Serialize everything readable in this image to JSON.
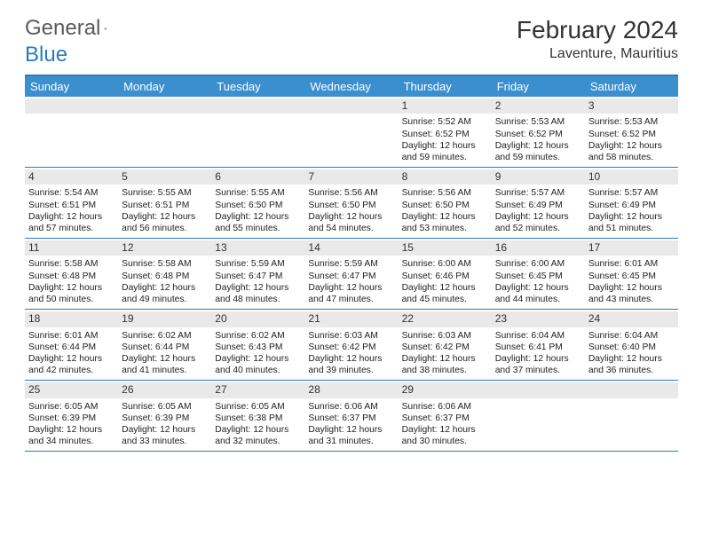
{
  "brand": {
    "name1": "General",
    "name2": "Blue"
  },
  "title": "February 2024",
  "location": "Laventure, Mauritius",
  "colors": {
    "header_bar": "#3b8fcf",
    "rule": "#2b7bbf",
    "daynum_bg": "#e9e9e9",
    "text": "#333333",
    "bg": "#ffffff"
  },
  "daysOfWeek": [
    "Sunday",
    "Monday",
    "Tuesday",
    "Wednesday",
    "Thursday",
    "Friday",
    "Saturday"
  ],
  "layout": {
    "first_weekday_index": 4,
    "num_days": 29
  },
  "days": {
    "1": {
      "sunrise": "5:52 AM",
      "sunset": "6:52 PM",
      "daylight": "12 hours and 59 minutes."
    },
    "2": {
      "sunrise": "5:53 AM",
      "sunset": "6:52 PM",
      "daylight": "12 hours and 59 minutes."
    },
    "3": {
      "sunrise": "5:53 AM",
      "sunset": "6:52 PM",
      "daylight": "12 hours and 58 minutes."
    },
    "4": {
      "sunrise": "5:54 AM",
      "sunset": "6:51 PM",
      "daylight": "12 hours and 57 minutes."
    },
    "5": {
      "sunrise": "5:55 AM",
      "sunset": "6:51 PM",
      "daylight": "12 hours and 56 minutes."
    },
    "6": {
      "sunrise": "5:55 AM",
      "sunset": "6:50 PM",
      "daylight": "12 hours and 55 minutes."
    },
    "7": {
      "sunrise": "5:56 AM",
      "sunset": "6:50 PM",
      "daylight": "12 hours and 54 minutes."
    },
    "8": {
      "sunrise": "5:56 AM",
      "sunset": "6:50 PM",
      "daylight": "12 hours and 53 minutes."
    },
    "9": {
      "sunrise": "5:57 AM",
      "sunset": "6:49 PM",
      "daylight": "12 hours and 52 minutes."
    },
    "10": {
      "sunrise": "5:57 AM",
      "sunset": "6:49 PM",
      "daylight": "12 hours and 51 minutes."
    },
    "11": {
      "sunrise": "5:58 AM",
      "sunset": "6:48 PM",
      "daylight": "12 hours and 50 minutes."
    },
    "12": {
      "sunrise": "5:58 AM",
      "sunset": "6:48 PM",
      "daylight": "12 hours and 49 minutes."
    },
    "13": {
      "sunrise": "5:59 AM",
      "sunset": "6:47 PM",
      "daylight": "12 hours and 48 minutes."
    },
    "14": {
      "sunrise": "5:59 AM",
      "sunset": "6:47 PM",
      "daylight": "12 hours and 47 minutes."
    },
    "15": {
      "sunrise": "6:00 AM",
      "sunset": "6:46 PM",
      "daylight": "12 hours and 45 minutes."
    },
    "16": {
      "sunrise": "6:00 AM",
      "sunset": "6:45 PM",
      "daylight": "12 hours and 44 minutes."
    },
    "17": {
      "sunrise": "6:01 AM",
      "sunset": "6:45 PM",
      "daylight": "12 hours and 43 minutes."
    },
    "18": {
      "sunrise": "6:01 AM",
      "sunset": "6:44 PM",
      "daylight": "12 hours and 42 minutes."
    },
    "19": {
      "sunrise": "6:02 AM",
      "sunset": "6:44 PM",
      "daylight": "12 hours and 41 minutes."
    },
    "20": {
      "sunrise": "6:02 AM",
      "sunset": "6:43 PM",
      "daylight": "12 hours and 40 minutes."
    },
    "21": {
      "sunrise": "6:03 AM",
      "sunset": "6:42 PM",
      "daylight": "12 hours and 39 minutes."
    },
    "22": {
      "sunrise": "6:03 AM",
      "sunset": "6:42 PM",
      "daylight": "12 hours and 38 minutes."
    },
    "23": {
      "sunrise": "6:04 AM",
      "sunset": "6:41 PM",
      "daylight": "12 hours and 37 minutes."
    },
    "24": {
      "sunrise": "6:04 AM",
      "sunset": "6:40 PM",
      "daylight": "12 hours and 36 minutes."
    },
    "25": {
      "sunrise": "6:05 AM",
      "sunset": "6:39 PM",
      "daylight": "12 hours and 34 minutes."
    },
    "26": {
      "sunrise": "6:05 AM",
      "sunset": "6:39 PM",
      "daylight": "12 hours and 33 minutes."
    },
    "27": {
      "sunrise": "6:05 AM",
      "sunset": "6:38 PM",
      "daylight": "12 hours and 32 minutes."
    },
    "28": {
      "sunrise": "6:06 AM",
      "sunset": "6:37 PM",
      "daylight": "12 hours and 31 minutes."
    },
    "29": {
      "sunrise": "6:06 AM",
      "sunset": "6:37 PM",
      "daylight": "12 hours and 30 minutes."
    }
  },
  "labels": {
    "sunrise": "Sunrise:",
    "sunset": "Sunset:",
    "daylight": "Daylight:"
  }
}
